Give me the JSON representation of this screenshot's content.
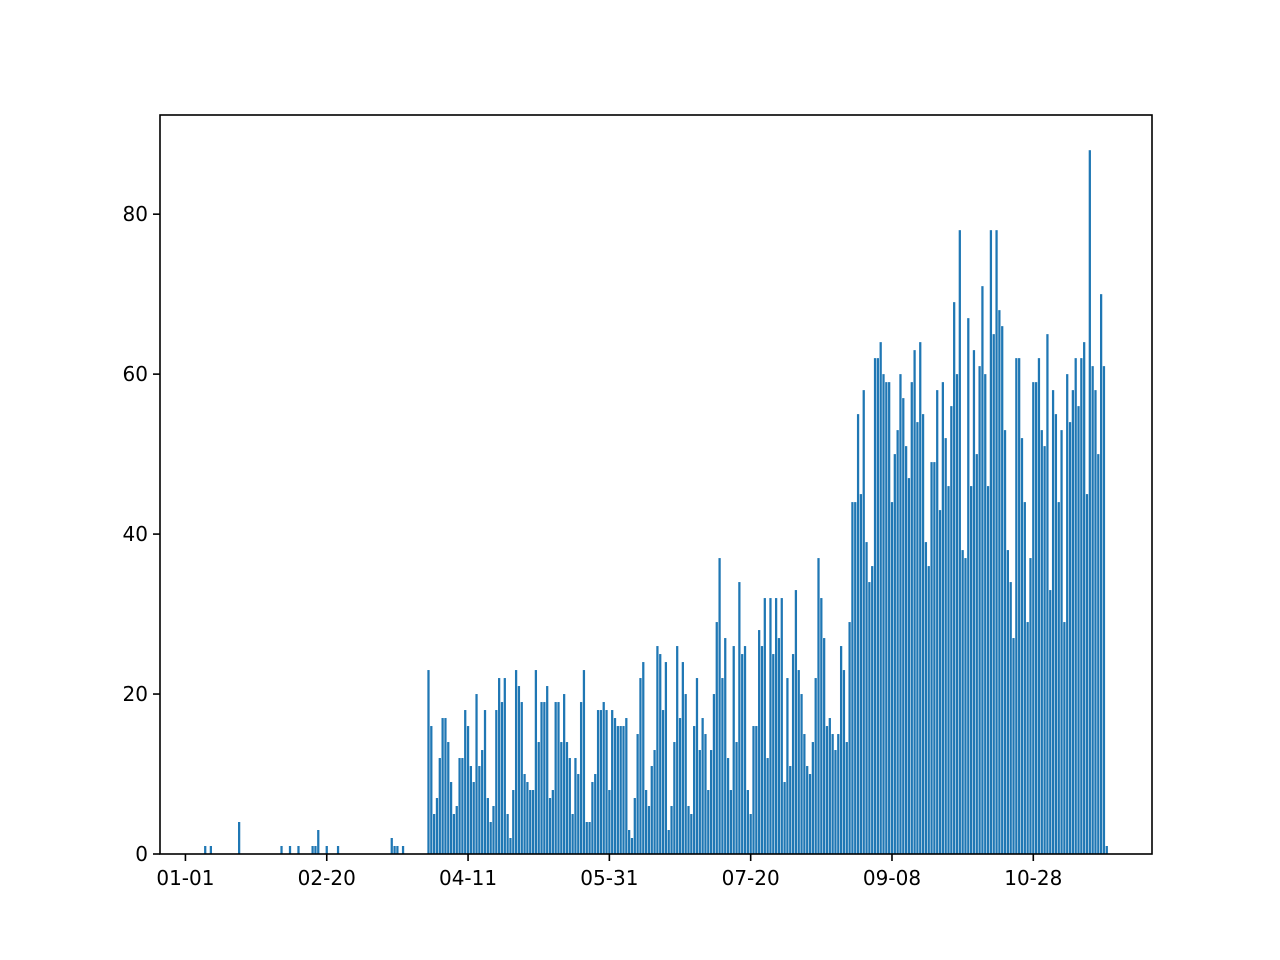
{
  "chart_data": {
    "type": "bar",
    "color": "#1f77b4",
    "x": [
      "01-08",
      "01-10",
      "01-20",
      "02-04",
      "02-07",
      "02-10",
      "02-15",
      "02-16",
      "02-17",
      "02-20",
      "02-24",
      "03-15",
      "03-16",
      "03-17",
      "03-19",
      "03-28",
      "03-29",
      "03-30",
      "03-31",
      "04-01",
      "04-02",
      "04-03",
      "04-04",
      "04-05",
      "04-06",
      "04-07",
      "04-08",
      "04-09",
      "04-10",
      "04-11",
      "04-12",
      "04-13",
      "04-14",
      "04-15",
      "04-16",
      "04-17",
      "04-18",
      "04-19",
      "04-20",
      "04-21",
      "04-22",
      "04-23",
      "04-24",
      "04-25",
      "04-26",
      "04-27",
      "04-28",
      "04-29",
      "04-30",
      "05-01",
      "05-02",
      "05-03",
      "05-04",
      "05-05",
      "05-06",
      "05-07",
      "05-08",
      "05-09",
      "05-10",
      "05-11",
      "05-12",
      "05-13",
      "05-14",
      "05-15",
      "05-16",
      "05-17",
      "05-18",
      "05-19",
      "05-20",
      "05-21",
      "05-22",
      "05-23",
      "05-24",
      "05-25",
      "05-26",
      "05-27",
      "05-28",
      "05-29",
      "05-30",
      "05-31",
      "06-01",
      "06-02",
      "06-03",
      "06-04",
      "06-05",
      "06-06",
      "06-07",
      "06-08",
      "06-09",
      "06-10",
      "06-11",
      "06-12",
      "06-13",
      "06-14",
      "06-15",
      "06-16",
      "06-17",
      "06-18",
      "06-19",
      "06-20",
      "06-21",
      "06-22",
      "06-23",
      "06-24",
      "06-25",
      "06-26",
      "06-27",
      "06-28",
      "06-29",
      "06-30",
      "07-01",
      "07-02",
      "07-03",
      "07-04",
      "07-05",
      "07-06",
      "07-07",
      "07-08",
      "07-09",
      "07-10",
      "07-11",
      "07-12",
      "07-13",
      "07-14",
      "07-15",
      "07-16",
      "07-17",
      "07-18",
      "07-19",
      "07-20",
      "07-21",
      "07-22",
      "07-23",
      "07-24",
      "07-25",
      "07-26",
      "07-27",
      "07-28",
      "07-29",
      "07-30",
      "07-31",
      "08-01",
      "08-02",
      "08-03",
      "08-04",
      "08-05",
      "08-06",
      "08-07",
      "08-08",
      "08-09",
      "08-10",
      "08-11",
      "08-12",
      "08-13",
      "08-14",
      "08-15",
      "08-16",
      "08-17",
      "08-18",
      "08-19",
      "08-20",
      "08-21",
      "08-22",
      "08-23",
      "08-24",
      "08-25",
      "08-26",
      "08-27",
      "08-28",
      "08-29",
      "08-30",
      "08-31",
      "09-01",
      "09-02",
      "09-03",
      "09-04",
      "09-05",
      "09-06",
      "09-07",
      "09-08",
      "09-09",
      "09-10",
      "09-11",
      "09-12",
      "09-13",
      "09-14",
      "09-15",
      "09-16",
      "09-17",
      "09-18",
      "09-19",
      "09-20",
      "09-21",
      "09-22",
      "09-23",
      "09-24",
      "09-25",
      "09-26",
      "09-27",
      "09-28",
      "09-29",
      "09-30",
      "10-01",
      "10-02",
      "10-03",
      "10-04",
      "10-05",
      "10-06",
      "10-07",
      "10-08",
      "10-09",
      "10-10",
      "10-11",
      "10-12",
      "10-13",
      "10-14",
      "10-15",
      "10-16",
      "10-17",
      "10-18",
      "10-19",
      "10-20",
      "10-21",
      "10-22",
      "10-23",
      "10-24",
      "10-25",
      "10-26",
      "10-27",
      "10-28",
      "10-29",
      "10-30",
      "10-31",
      "11-01",
      "11-02",
      "11-03",
      "11-04",
      "11-05",
      "11-06",
      "11-07",
      "11-08",
      "11-09",
      "11-10",
      "11-11",
      "11-12",
      "11-13",
      "11-14",
      "11-15",
      "11-16",
      "11-17",
      "11-18",
      "11-19",
      "11-20",
      "11-21",
      "11-22",
      "11-23"
    ],
    "values": [
      1,
      1,
      4,
      1,
      1,
      1,
      1,
      1,
      3,
      1,
      1,
      2,
      1,
      1,
      1,
      23,
      16,
      5,
      7,
      12,
      17,
      17,
      14,
      9,
      5,
      6,
      12,
      12,
      18,
      16,
      11,
      9,
      20,
      11,
      13,
      18,
      7,
      4,
      6,
      18,
      22,
      19,
      22,
      5,
      2,
      8,
      23,
      21,
      19,
      10,
      9,
      8,
      8,
      23,
      14,
      19,
      19,
      21,
      7,
      8,
      19,
      19,
      14,
      20,
      14,
      12,
      5,
      12,
      10,
      19,
      23,
      4,
      4,
      9,
      10,
      18,
      18,
      19,
      18,
      8,
      18,
      17,
      16,
      16,
      16,
      17,
      3,
      2,
      7,
      15,
      22,
      24,
      8,
      6,
      11,
      13,
      26,
      25,
      18,
      24,
      3,
      6,
      14,
      26,
      17,
      24,
      20,
      6,
      5,
      16,
      22,
      13,
      17,
      15,
      8,
      13,
      20,
      29,
      37,
      22,
      27,
      12,
      8,
      26,
      14,
      34,
      25,
      26,
      8,
      5,
      16,
      16,
      28,
      26,
      32,
      12,
      32,
      25,
      32,
      27,
      32,
      9,
      22,
      11,
      25,
      33,
      23,
      20,
      15,
      11,
      10,
      14,
      22,
      37,
      32,
      27,
      16,
      17,
      15,
      13,
      15,
      26,
      23,
      14,
      29,
      44,
      44,
      55,
      45,
      58,
      39,
      34,
      36,
      62,
      62,
      64,
      60,
      59,
      59,
      44,
      50,
      53,
      60,
      57,
      51,
      47,
      59,
      63,
      54,
      64,
      55,
      39,
      36,
      49,
      49,
      58,
      43,
      59,
      52,
      46,
      56,
      69,
      60,
      78,
      38,
      37,
      67,
      46,
      63,
      50,
      61,
      71,
      60,
      46,
      78,
      65,
      78,
      68,
      66,
      53,
      38,
      34,
      27,
      62,
      62,
      52,
      44,
      29,
      37,
      59,
      59,
      62,
      53,
      51,
      65,
      33,
      58,
      55,
      44,
      53,
      29,
      60,
      54,
      58,
      62,
      56,
      62,
      64,
      45,
      88,
      61,
      58,
      50,
      70,
      61,
      1
    ],
    "xlim": [
      "12-23",
      "12-09"
    ],
    "xticks": [
      "01-01",
      "02-20",
      "04-11",
      "05-31",
      "07-20",
      "09-08",
      "10-28"
    ],
    "ylim": [
      0,
      92.4
    ],
    "yticks": [
      0,
      20,
      40,
      60,
      80
    ]
  }
}
